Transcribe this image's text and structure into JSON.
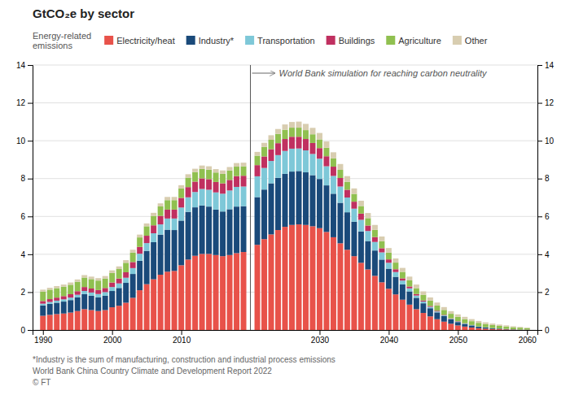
{
  "chart_data": {
    "type": "bar",
    "stacked": true,
    "title": "GtCO₂e by sector",
    "annotations": [
      "World Bank simulation for reaching carbon neutrality",
      "Energy-related\nemissions",
      "*Industry is the sum of manufacturing, construction and industrial process emissions",
      "World Bank China Country Climate and Development Report 2022",
      "© FT"
    ],
    "x": [
      1990,
      1991,
      1992,
      1993,
      1994,
      1995,
      1996,
      1997,
      1998,
      1999,
      2000,
      2001,
      2002,
      2003,
      2004,
      2005,
      2006,
      2007,
      2008,
      2009,
      2010,
      2011,
      2012,
      2013,
      2014,
      2015,
      2016,
      2017,
      2018,
      2019,
      2021,
      2022,
      2023,
      2024,
      2025,
      2026,
      2027,
      2028,
      2029,
      2030,
      2031,
      2032,
      2033,
      2034,
      2035,
      2036,
      2037,
      2038,
      2039,
      2040,
      2041,
      2042,
      2043,
      2044,
      2045,
      2046,
      2047,
      2048,
      2049,
      2050,
      2051,
      2052,
      2053,
      2054,
      2055,
      2056,
      2057,
      2058,
      2059,
      2060
    ],
    "xlim": [
      1988.5,
      2061.5
    ],
    "xticks": [
      1990,
      2000,
      2010,
      2030,
      2040,
      2050,
      2060
    ],
    "ylim": [
      0,
      14
    ],
    "yticks": [
      0,
      2,
      4,
      6,
      8,
      10,
      12,
      14
    ],
    "y2lim": [
      0,
      14
    ],
    "y2ticks": [
      0,
      2,
      4,
      6,
      8,
      10,
      12,
      14
    ],
    "grid": true,
    "legend": "top-left",
    "series": [
      {
        "name": "Electricity/heat",
        "color": "#e8524a",
        "values": [
          0.75,
          0.8,
          0.84,
          0.87,
          0.92,
          1.0,
          1.1,
          1.05,
          1.0,
          1.05,
          1.2,
          1.28,
          1.44,
          1.7,
          2.1,
          2.42,
          2.68,
          2.92,
          3.08,
          3.12,
          3.42,
          3.72,
          3.92,
          4.02,
          4.02,
          3.96,
          3.9,
          3.96,
          4.06,
          4.12,
          4.5,
          4.8,
          5.05,
          5.28,
          5.45,
          5.55,
          5.58,
          5.55,
          5.48,
          5.38,
          5.18,
          4.9,
          4.58,
          4.24,
          3.9,
          3.55,
          3.2,
          2.86,
          2.52,
          2.18,
          1.88,
          1.6,
          1.34,
          1.1,
          0.9,
          0.72,
          0.57,
          0.44,
          0.33,
          0.24,
          0.18,
          0.13,
          0.09,
          0.07,
          0.05,
          0.04,
          0.03,
          0.02,
          0.01,
          0.01
        ]
      },
      {
        "name": "Industry*",
        "color": "#1a4a7a",
        "values": [
          0.55,
          0.58,
          0.6,
          0.63,
          0.66,
          0.72,
          0.8,
          0.76,
          0.72,
          0.76,
          0.86,
          0.94,
          1.05,
          1.26,
          1.56,
          1.76,
          1.96,
          2.12,
          2.22,
          2.16,
          2.36,
          2.52,
          2.56,
          2.56,
          2.5,
          2.4,
          2.36,
          2.42,
          2.46,
          2.42,
          2.52,
          2.62,
          2.7,
          2.76,
          2.8,
          2.82,
          2.82,
          2.78,
          2.7,
          2.6,
          2.46,
          2.3,
          2.14,
          1.98,
          1.82,
          1.66,
          1.5,
          1.34,
          1.2,
          1.06,
          0.93,
          0.81,
          0.7,
          0.6,
          0.51,
          0.43,
          0.36,
          0.29,
          0.23,
          0.18,
          0.14,
          0.11,
          0.08,
          0.06,
          0.04,
          0.03,
          0.02,
          0.015,
          0.01,
          0.008
        ]
      },
      {
        "name": "Transportation",
        "color": "#7ec8d8",
        "values": [
          0.09,
          0.1,
          0.11,
          0.12,
          0.13,
          0.14,
          0.16,
          0.17,
          0.18,
          0.19,
          0.21,
          0.24,
          0.27,
          0.31,
          0.37,
          0.41,
          0.47,
          0.54,
          0.59,
          0.61,
          0.69,
          0.77,
          0.81,
          0.87,
          0.89,
          0.91,
          0.94,
          0.99,
          1.04,
          1.04,
          1.1,
          1.14,
          1.18,
          1.2,
          1.21,
          1.21,
          1.19,
          1.16,
          1.12,
          1.07,
          1.01,
          0.94,
          0.86,
          0.78,
          0.69,
          0.61,
          0.53,
          0.45,
          0.38,
          0.31,
          0.25,
          0.2,
          0.16,
          0.12,
          0.09,
          0.07,
          0.05,
          0.04,
          0.03,
          0.025,
          0.02,
          0.015,
          0.01,
          0.008,
          0.006,
          0.004,
          0.003,
          0.002,
          0.001,
          0.001
        ]
      },
      {
        "name": "Buildings",
        "color": "#c03060",
        "values": [
          0.14,
          0.15,
          0.16,
          0.17,
          0.18,
          0.19,
          0.21,
          0.21,
          0.21,
          0.22,
          0.24,
          0.26,
          0.29,
          0.32,
          0.36,
          0.39,
          0.42,
          0.45,
          0.47,
          0.47,
          0.51,
          0.54,
          0.55,
          0.56,
          0.56,
          0.55,
          0.55,
          0.56,
          0.57,
          0.57,
          0.59,
          0.61,
          0.62,
          0.63,
          0.63,
          0.63,
          0.62,
          0.6,
          0.58,
          0.56,
          0.53,
          0.49,
          0.45,
          0.41,
          0.37,
          0.33,
          0.29,
          0.26,
          0.22,
          0.18,
          0.15,
          0.12,
          0.1,
          0.08,
          0.06,
          0.05,
          0.04,
          0.03,
          0.025,
          0.02,
          0.015,
          0.01,
          0.008,
          0.006,
          0.004,
          0.003,
          0.002,
          0.001,
          0.001,
          0.001
        ]
      },
      {
        "name": "Agriculture",
        "color": "#90c050",
        "values": [
          0.5,
          0.5,
          0.5,
          0.5,
          0.5,
          0.5,
          0.5,
          0.5,
          0.5,
          0.5,
          0.5,
          0.5,
          0.5,
          0.5,
          0.5,
          0.5,
          0.5,
          0.5,
          0.5,
          0.5,
          0.5,
          0.5,
          0.5,
          0.5,
          0.5,
          0.5,
          0.5,
          0.5,
          0.5,
          0.5,
          0.5,
          0.5,
          0.5,
          0.49,
          0.49,
          0.48,
          0.48,
          0.47,
          0.46,
          0.46,
          0.45,
          0.44,
          0.43,
          0.42,
          0.41,
          0.4,
          0.39,
          0.38,
          0.37,
          0.36,
          0.35,
          0.34,
          0.32,
          0.31,
          0.3,
          0.28,
          0.27,
          0.26,
          0.24,
          0.23,
          0.22,
          0.2,
          0.19,
          0.17,
          0.16,
          0.14,
          0.13,
          0.11,
          0.1,
          0.08
        ]
      },
      {
        "name": "Other",
        "color": "#d8cdb0",
        "values": [
          0.1,
          0.1,
          0.11,
          0.11,
          0.12,
          0.12,
          0.13,
          0.13,
          0.13,
          0.13,
          0.14,
          0.14,
          0.14,
          0.15,
          0.15,
          0.15,
          0.16,
          0.16,
          0.17,
          0.17,
          0.17,
          0.18,
          0.18,
          0.18,
          0.18,
          0.18,
          0.18,
          0.18,
          0.19,
          0.19,
          0.2,
          0.22,
          0.24,
          0.26,
          0.28,
          0.3,
          0.32,
          0.33,
          0.34,
          0.34,
          0.33,
          0.32,
          0.31,
          0.3,
          0.29,
          0.28,
          0.27,
          0.26,
          0.25,
          0.24,
          0.22,
          0.21,
          0.2,
          0.19,
          0.18,
          0.17,
          0.16,
          0.15,
          0.14,
          0.13,
          0.12,
          0.11,
          0.1,
          0.09,
          0.08,
          0.07,
          0.06,
          0.05,
          0.04,
          0.03
        ]
      }
    ]
  }
}
